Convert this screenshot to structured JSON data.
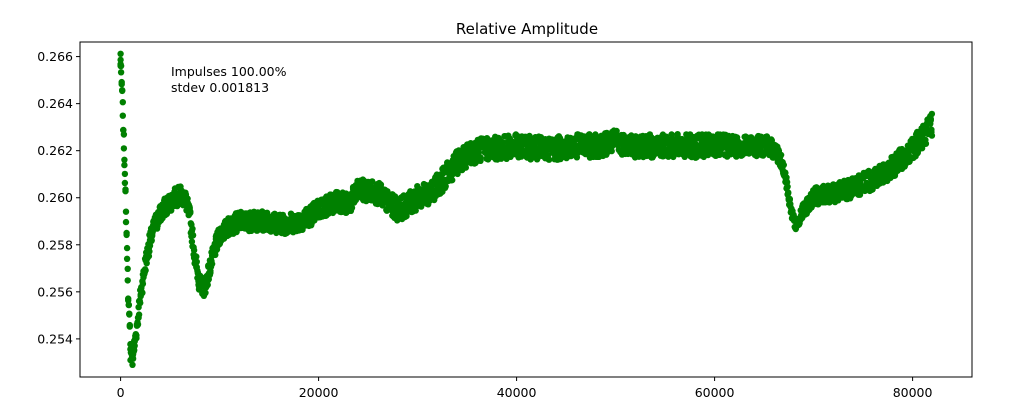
{
  "chart_data": {
    "type": "scatter",
    "title": "Relative Amplitude",
    "xlabel": "",
    "ylabel": "",
    "xlim": [
      -4100,
      86000
    ],
    "ylim": [
      0.25238,
      0.26662
    ],
    "xticks": [
      0,
      20000,
      40000,
      60000,
      80000
    ],
    "xtick_labels": [
      "0",
      "20000",
      "40000",
      "60000",
      "80000"
    ],
    "yticks": [
      0.254,
      0.256,
      0.258,
      0.26,
      0.262,
      0.264,
      0.266
    ],
    "ytick_labels": [
      "0.254",
      "0.256",
      "0.258",
      "0.260",
      "0.262",
      "0.264",
      "0.266"
    ],
    "grid": false,
    "legend": "none",
    "series": [
      {
        "color": "#008000",
        "marker": "circle",
        "points_center": [
          [
            0,
            0.2658
          ],
          [
            200,
            0.264
          ],
          [
            400,
            0.2615
          ],
          [
            600,
            0.2585
          ],
          [
            800,
            0.2555
          ],
          [
            1000,
            0.2538
          ],
          [
            1200,
            0.2532
          ],
          [
            1500,
            0.254
          ],
          [
            2000,
            0.2558
          ],
          [
            2500,
            0.2572
          ],
          [
            3000,
            0.2582
          ],
          [
            3500,
            0.2589
          ],
          [
            4000,
            0.2593
          ],
          [
            4500,
            0.2596
          ],
          [
            5000,
            0.2598
          ],
          [
            5500,
            0.26
          ],
          [
            6000,
            0.2601
          ],
          [
            6500,
            0.26
          ],
          [
            7000,
            0.2592
          ],
          [
            7500,
            0.2575
          ],
          [
            8000,
            0.2563
          ],
          [
            8500,
            0.2562
          ],
          [
            9000,
            0.257
          ],
          [
            9500,
            0.2578
          ],
          [
            10000,
            0.2584
          ],
          [
            11000,
            0.2588
          ],
          [
            12000,
            0.259
          ],
          [
            13000,
            0.259
          ],
          [
            14000,
            0.259
          ],
          [
            15000,
            0.259
          ],
          [
            16000,
            0.2589
          ],
          [
            17000,
            0.2589
          ],
          [
            18000,
            0.259
          ],
          [
            19000,
            0.2592
          ],
          [
            20000,
            0.2595
          ],
          [
            21000,
            0.2597
          ],
          [
            22000,
            0.2599
          ],
          [
            23000,
            0.2597
          ],
          [
            24000,
            0.2603
          ],
          [
            25000,
            0.2603
          ],
          [
            26000,
            0.2602
          ],
          [
            27000,
            0.2598
          ],
          [
            28000,
            0.2595
          ],
          [
            29000,
            0.2597
          ],
          [
            30000,
            0.26
          ],
          [
            31000,
            0.2602
          ],
          [
            32000,
            0.2605
          ],
          [
            33000,
            0.261
          ],
          [
            34000,
            0.2615
          ],
          [
            35000,
            0.2618
          ],
          [
            36000,
            0.262
          ],
          [
            37000,
            0.2621
          ],
          [
            38000,
            0.2621
          ],
          [
            40000,
            0.2622
          ],
          [
            42000,
            0.2621
          ],
          [
            44000,
            0.2621
          ],
          [
            46000,
            0.2622
          ],
          [
            48000,
            0.2622
          ],
          [
            50000,
            0.2624
          ],
          [
            52000,
            0.2622
          ],
          [
            54000,
            0.2622
          ],
          [
            56000,
            0.2622
          ],
          [
            58000,
            0.2622
          ],
          [
            60000,
            0.2622
          ],
          [
            62000,
            0.2622
          ],
          [
            64000,
            0.2622
          ],
          [
            65500,
            0.2622
          ],
          [
            66500,
            0.2618
          ],
          [
            67200,
            0.2608
          ],
          [
            67700,
            0.2595
          ],
          [
            68200,
            0.2588
          ],
          [
            69000,
            0.2595
          ],
          [
            70000,
            0.26
          ],
          [
            71000,
            0.2602
          ],
          [
            72000,
            0.2602
          ],
          [
            73000,
            0.2603
          ],
          [
            74000,
            0.2604
          ],
          [
            75000,
            0.2606
          ],
          [
            76000,
            0.2608
          ],
          [
            77000,
            0.261
          ],
          [
            78000,
            0.2613
          ],
          [
            79000,
            0.2617
          ],
          [
            80000,
            0.2621
          ],
          [
            81000,
            0.2626
          ],
          [
            82000,
            0.2631
          ]
        ],
        "noise_halfwidth": [
          [
            0,
            0.0003
          ],
          [
            2000,
            0.0004
          ],
          [
            10000,
            0.0004
          ],
          [
            30000,
            0.0005
          ],
          [
            40000,
            0.0005
          ],
          [
            60000,
            0.0005
          ],
          [
            66000,
            0.0004
          ],
          [
            68000,
            0.0002
          ],
          [
            70000,
            0.0004
          ],
          [
            82000,
            0.0005
          ]
        ]
      }
    ],
    "annotations": [
      "Impulses 100.00%",
      "stdev 0.001813"
    ]
  }
}
